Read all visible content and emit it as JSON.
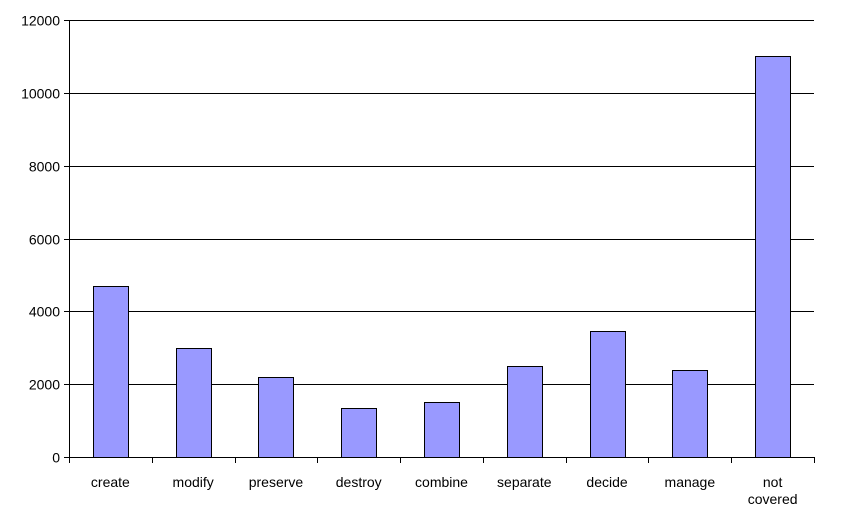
{
  "chart_data": {
    "type": "bar",
    "title": "",
    "xlabel": "",
    "ylabel": "",
    "categories": [
      [
        "create"
      ],
      [
        "modify"
      ],
      [
        "preserve"
      ],
      [
        "destroy"
      ],
      [
        "combine"
      ],
      [
        "separate"
      ],
      [
        "decide"
      ],
      [
        "manage"
      ],
      [
        "not",
        "covered"
      ]
    ],
    "values": [
      4700,
      3000,
      2200,
      1350,
      1500,
      2500,
      3450,
      2400,
      11000
    ],
    "ylim": [
      0,
      12000
    ],
    "yticks": [
      "0",
      "2000",
      "4000",
      "6000",
      "8000",
      "10000",
      "12000"
    ],
    "grid": true,
    "legend": "none",
    "colors": {
      "bar": "#9999ff",
      "bar_outline": "#000000",
      "grid": "#000000"
    }
  }
}
